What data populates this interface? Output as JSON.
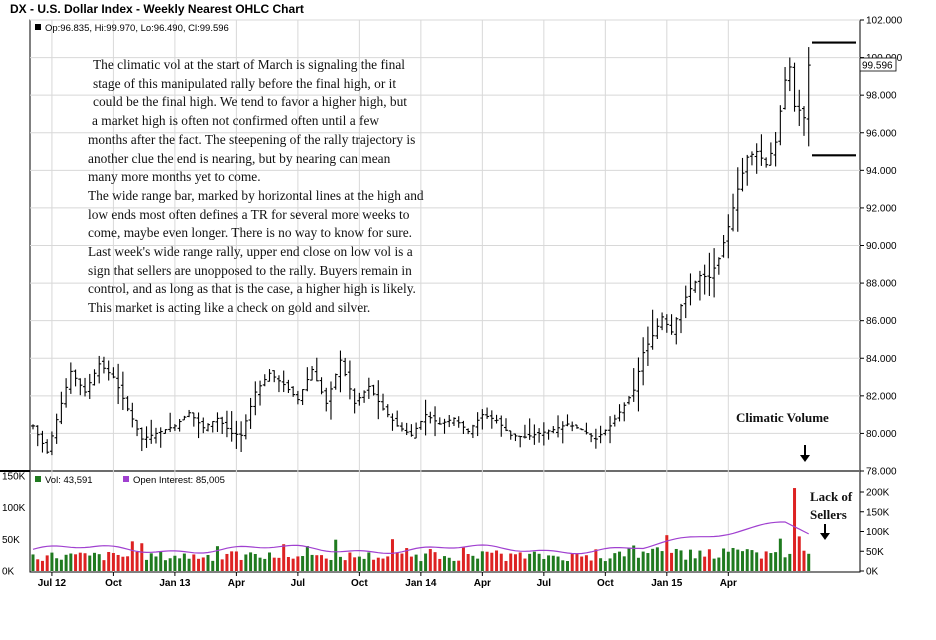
{
  "chart_data": {
    "type": "ohlc",
    "title": "DX - U.S. Dollar Index - Weekly Nearest OHLC Chart",
    "price_legend": "Op:96.835, Hi:99.970, Lo:96.490, Cl:99.596",
    "last_price_label": "99.596",
    "ylim": [
      78,
      102
    ],
    "yticks": [
      "102.000",
      "100.000",
      "98.000",
      "96.000",
      "94.000",
      "92.000",
      "90.000",
      "88.000",
      "86.000",
      "84.000",
      "82.000",
      "80.000",
      "78.000"
    ],
    "x_months": [
      "Jul 12",
      "Oct",
      "Jan 13",
      "Apr",
      "Jul",
      "Oct",
      "Jan 14",
      "Apr",
      "Jul",
      "Oct",
      "Jan 15",
      "Apr"
    ],
    "close_anchors": [
      {
        "week": 0,
        "close": 80.4
      },
      {
        "week": 3,
        "close": 79.0
      },
      {
        "week": 6,
        "close": 81.6
      },
      {
        "week": 8,
        "close": 83.3
      },
      {
        "week": 11,
        "close": 82.2
      },
      {
        "week": 14,
        "close": 83.7
      },
      {
        "week": 17,
        "close": 83.0
      },
      {
        "week": 20,
        "close": 81.3
      },
      {
        "week": 23,
        "close": 79.7
      },
      {
        "week": 26,
        "close": 80.0
      },
      {
        "week": 30,
        "close": 80.4
      },
      {
        "week": 33,
        "close": 81.1
      },
      {
        "week": 36,
        "close": 80.3
      },
      {
        "week": 39,
        "close": 80.8
      },
      {
        "week": 42,
        "close": 80.0
      },
      {
        "week": 44,
        "close": 79.9
      },
      {
        "week": 47,
        "close": 82.2
      },
      {
        "week": 50,
        "close": 83.2
      },
      {
        "week": 53,
        "close": 82.6
      },
      {
        "week": 56,
        "close": 81.8
      },
      {
        "week": 59,
        "close": 83.4
      },
      {
        "week": 62,
        "close": 81.6
      },
      {
        "week": 65,
        "close": 83.9
      },
      {
        "week": 68,
        "close": 81.6
      },
      {
        "week": 71,
        "close": 82.5
      },
      {
        "week": 74,
        "close": 81.3
      },
      {
        "week": 77,
        "close": 80.4
      },
      {
        "week": 80,
        "close": 79.9
      },
      {
        "week": 83,
        "close": 81.0
      },
      {
        "week": 86,
        "close": 80.5
      },
      {
        "week": 89,
        "close": 80.8
      },
      {
        "week": 92,
        "close": 80.1
      },
      {
        "week": 95,
        "close": 81.0
      },
      {
        "week": 98,
        "close": 80.7
      },
      {
        "week": 101,
        "close": 79.9
      },
      {
        "week": 104,
        "close": 79.8
      },
      {
        "week": 107,
        "close": 80.0
      },
      {
        "week": 110,
        "close": 80.2
      },
      {
        "week": 113,
        "close": 80.5
      },
      {
        "week": 116,
        "close": 80.2
      },
      {
        "week": 119,
        "close": 79.7
      },
      {
        "week": 122,
        "close": 80.4
      },
      {
        "week": 125,
        "close": 81.5
      },
      {
        "week": 127,
        "close": 82.3
      },
      {
        "week": 129,
        "close": 84.3
      },
      {
        "week": 131,
        "close": 85.2
      },
      {
        "week": 133,
        "close": 86.2
      },
      {
        "week": 135,
        "close": 85.4
      },
      {
        "week": 137,
        "close": 86.8
      },
      {
        "week": 139,
        "close": 87.7
      },
      {
        "week": 141,
        "close": 88.4
      },
      {
        "week": 143,
        "close": 88.3
      },
      {
        "week": 145,
        "close": 89.3
      },
      {
        "week": 147,
        "close": 91.0
      },
      {
        "week": 149,
        "close": 93.0
      },
      {
        "week": 151,
        "close": 94.7
      },
      {
        "week": 153,
        "close": 95.0
      },
      {
        "week": 155,
        "close": 94.3
      },
      {
        "week": 157,
        "close": 95.5
      },
      {
        "week": 159,
        "close": 98.8
      },
      {
        "week": 160,
        "close": 99.5
      },
      {
        "week": 161,
        "close": 97.4
      },
      {
        "week": 162,
        "close": 97.2
      },
      {
        "week": 163,
        "close": 96.8
      },
      {
        "week": 164,
        "close": 99.6
      }
    ],
    "range_bar": {
      "high": 100.8,
      "low": 94.8
    },
    "volume": {
      "legend_vol": "Vol: 43,591",
      "legend_oi": "Open Interest: 85,005",
      "left_ticks": [
        "150K",
        "100K",
        "50K",
        "0K"
      ],
      "right_ticks": [
        "200K",
        "150K",
        "100K",
        "50K",
        "0K"
      ],
      "series": [
        {
          "name": "Vol"
        },
        {
          "name": "Open Interest"
        }
      ]
    },
    "colors": {
      "up": "#1f7a1f",
      "down": "#dd2222",
      "open_interest": "#a040d0",
      "bars": "#000000"
    }
  },
  "annotations": {
    "main": [
      "The climatic vol at the start of March is signaling the final",
      "stage of this manipulated rally before the final high, or it",
      "could be the final high.  We tend to favor a higher high, but",
      "a market high is often not confirmed  often until a few",
      "months after the fact.  The steepening of the rally trajectory is",
      "another clue the end is nearing, but by nearing can mean",
      "many more months yet to come.",
      "",
      "The wide range bar, marked by horizontal lines at the high and",
      "low ends most often defines a TR for several more weeks to",
      "come, maybe even longer.  There is no way to know for sure.",
      "Last week's wide range rally, upper end close on low vol is a",
      "sign that sellers are unopposed to the rally.  Buyers remain in",
      "control, and as long as that is the case, a higher high is likely.",
      "This market is acting like a check on gold and silver."
    ],
    "climatic_volume": "Climatic Volume",
    "lack_of": "Lack of",
    "sellers": "Sellers"
  }
}
